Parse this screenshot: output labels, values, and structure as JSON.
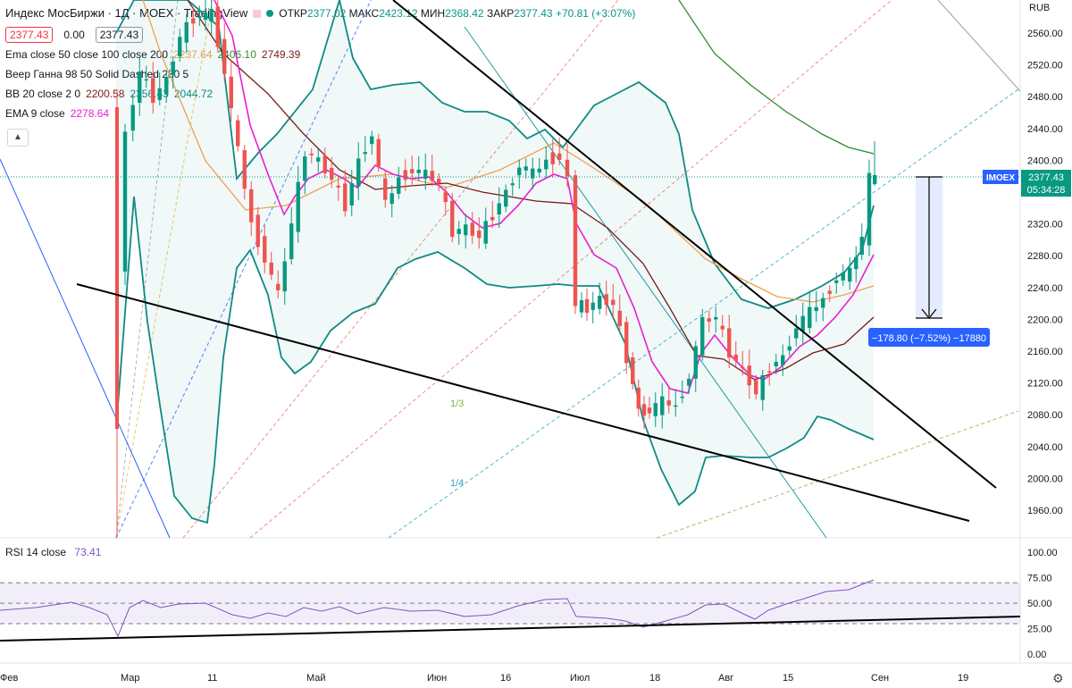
{
  "header": {
    "title": "Индекс МосБиржи · 1Д · MOEX · TradingView",
    "ohlc": {
      "open_label": "ОТКР",
      "open": "2377.02",
      "high_label": "МАКС",
      "high": "2423.12",
      "low_label": "МИН",
      "low": "2368.42",
      "close_label": "ЗАКР",
      "close": "2377.43",
      "change": "+70.81 (+3.07%)"
    },
    "price_box_1": "2377.43",
    "spread": "0.00",
    "price_box_2": "2377.43"
  },
  "indicators": {
    "ema": {
      "label": "Ema close 50 close 100 close 200",
      "v1": "2237.64",
      "v2": "2406.10",
      "v3": "2749.39"
    },
    "gann": {
      "label": "Веер Ганна 98 50 Solid Dashed 280 5"
    },
    "bb": {
      "label": "BB 20 close 2 0",
      "v1": "2200.58",
      "v2": "2356.43",
      "v3": "2044.72"
    },
    "ema9": {
      "label": "EMA 9 close",
      "v1": "2278.64"
    },
    "rsi": {
      "label": "RSI 14 close",
      "v1": "73.41"
    }
  },
  "colors": {
    "up": "#089981",
    "down": "#ef5350",
    "bb": "#0f8a84",
    "ema9": "#e91ecf",
    "ema50": "#f0a050",
    "ema100": "#7a1a16",
    "ema200": "#2e8b2e",
    "rsi": "#7e57c2",
    "last_price": "#2962ff"
  },
  "chart_data": {
    "type": "candlestick",
    "currency": "RUB",
    "y_ticks": [
      1960,
      2000,
      2040,
      2080,
      2120,
      2160,
      2200,
      2240,
      2280,
      2320,
      2360,
      2400,
      2440,
      2480,
      2520,
      2560
    ],
    "x_labels": [
      "Фев",
      "Мар",
      "11",
      "Май",
      "Июн",
      "16",
      "Июл",
      "18",
      "Авг",
      "15",
      "Сен",
      "19"
    ],
    "last_price": "2377.43",
    "countdown": "05:34:28",
    "ticker_label": "IMOEX",
    "measure": "−178.80 (−7.52%) −17880",
    "gann_labels": [
      "1/3",
      "1/4"
    ],
    "rsi_ticks": [
      100.0,
      75.0,
      50.0,
      25.0,
      0.0
    ],
    "rsi_last": 73.41
  }
}
